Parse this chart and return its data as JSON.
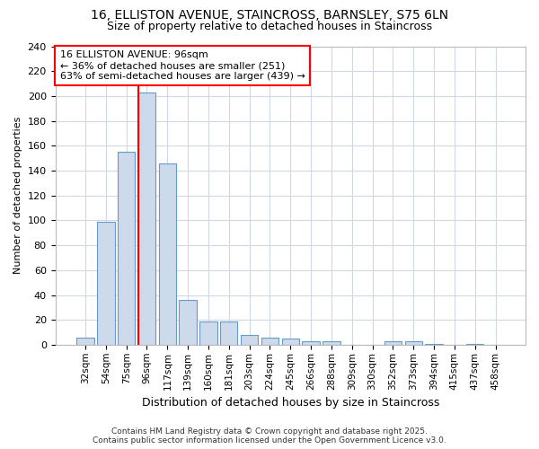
{
  "title": "16, ELLISTON AVENUE, STAINCROSS, BARNSLEY, S75 6LN",
  "subtitle": "Size of property relative to detached houses in Staincross",
  "xlabel": "Distribution of detached houses by size in Staincross",
  "ylabel": "Number of detached properties",
  "categories": [
    "32sqm",
    "54sqm",
    "75sqm",
    "96sqm",
    "117sqm",
    "139sqm",
    "160sqm",
    "181sqm",
    "203sqm",
    "224sqm",
    "245sqm",
    "266sqm",
    "288sqm",
    "309sqm",
    "330sqm",
    "352sqm",
    "373sqm",
    "394sqm",
    "415sqm",
    "437sqm",
    "458sqm"
  ],
  "values": [
    6,
    99,
    155,
    203,
    146,
    36,
    19,
    19,
    8,
    6,
    5,
    3,
    3,
    0,
    0,
    3,
    3,
    1,
    0,
    1,
    0
  ],
  "bar_color": "#ccdaeb",
  "bar_edge_color": "#6699cc",
  "grid_color": "#d0d8e8",
  "background_color": "#ffffff",
  "plot_bg_color": "#ffffff",
  "red_line_index": 3,
  "annotation_line1": "16 ELLISTON AVENUE: 96sqm",
  "annotation_line2": "← 36% of detached houses are smaller (251)",
  "annotation_line3": "63% of semi-detached houses are larger (439) →",
  "annotation_box_color": "white",
  "annotation_box_edge_color": "red",
  "footer_text": "Contains HM Land Registry data © Crown copyright and database right 2025.\nContains public sector information licensed under the Open Government Licence v3.0.",
  "ylim": [
    0,
    240
  ],
  "yticks": [
    0,
    20,
    40,
    60,
    80,
    100,
    120,
    140,
    160,
    180,
    200,
    220,
    240
  ],
  "title_fontsize": 10,
  "subtitle_fontsize": 9,
  "ylabel_fontsize": 8,
  "xlabel_fontsize": 9
}
